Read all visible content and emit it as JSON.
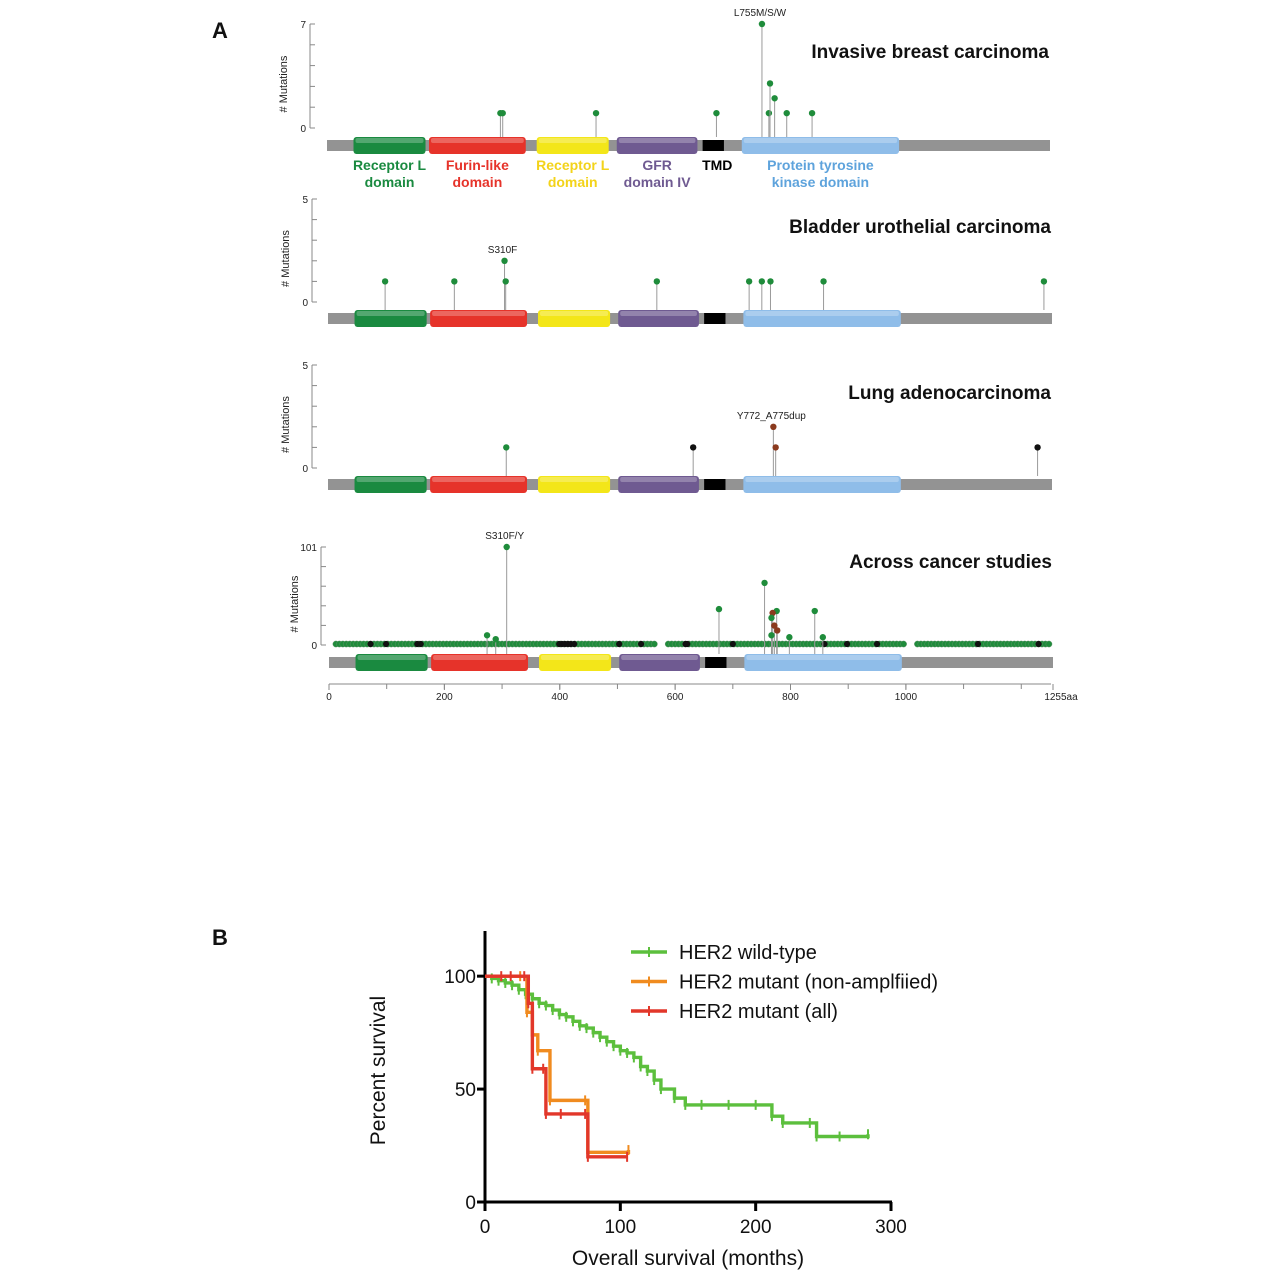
{
  "figure": {
    "panel_a_label": "A",
    "panel_b_label": "B"
  },
  "chart_data": [
    {
      "type": "lollipop",
      "id": "breast",
      "title": "Invasive breast carcinoma",
      "ylabel": "# Mutations",
      "ylim": [
        0,
        7
      ],
      "y_ticks": [
        "0",
        "7"
      ],
      "protein_length": 1255,
      "show_domain_labels": true,
      "annotation": {
        "text": "L755M/S/W",
        "x": 755
      },
      "points": [
        {
          "x": 301,
          "y": 1,
          "color": "#1f8c3b"
        },
        {
          "x": 305,
          "y": 1,
          "color": "#1f8c3b"
        },
        {
          "x": 467,
          "y": 1,
          "color": "#1f8c3b"
        },
        {
          "x": 676,
          "y": 1,
          "color": "#1f8c3b"
        },
        {
          "x": 755,
          "y": 7,
          "color": "#1f8c3b"
        },
        {
          "x": 767,
          "y": 1,
          "color": "#1f8c3b"
        },
        {
          "x": 769,
          "y": 3,
          "color": "#1f8c3b"
        },
        {
          "x": 777,
          "y": 2,
          "color": "#1f8c3b"
        },
        {
          "x": 798,
          "y": 1,
          "color": "#1f8c3b"
        },
        {
          "x": 842,
          "y": 1,
          "color": "#1f8c3b"
        }
      ]
    },
    {
      "type": "lollipop",
      "id": "bladder",
      "title": "Bladder urothelial carcinoma",
      "ylabel": "# Mutations",
      "ylim": [
        0,
        5
      ],
      "y_ticks": [
        "0",
        "5"
      ],
      "protein_length": 1255,
      "show_domain_labels": false,
      "annotation": {
        "text": "S310F",
        "x": 306
      },
      "points": [
        {
          "x": 99,
          "y": 1,
          "color": "#1f8c3b"
        },
        {
          "x": 219,
          "y": 1,
          "color": "#1f8c3b"
        },
        {
          "x": 306,
          "y": 2,
          "color": "#1f8c3b"
        },
        {
          "x": 308,
          "y": 1,
          "color": "#1f8c3b"
        },
        {
          "x": 570,
          "y": 1,
          "color": "#1f8c3b"
        },
        {
          "x": 730,
          "y": 1,
          "color": "#1f8c3b"
        },
        {
          "x": 752,
          "y": 1,
          "color": "#1f8c3b"
        },
        {
          "x": 767,
          "y": 1,
          "color": "#1f8c3b"
        },
        {
          "x": 859,
          "y": 1,
          "color": "#1f8c3b"
        },
        {
          "x": 1241,
          "y": 1,
          "color": "#1f8c3b"
        }
      ]
    },
    {
      "type": "lollipop",
      "id": "lung",
      "title": "Lung adenocarcinoma",
      "ylabel": "# Mutations",
      "ylim": [
        0,
        5
      ],
      "y_ticks": [
        "0",
        "5"
      ],
      "protein_length": 1255,
      "show_domain_labels": false,
      "annotation": {
        "text": "Y772_A775dup",
        "x": 772
      },
      "points": [
        {
          "x": 309,
          "y": 1,
          "color": "#1f8c3b"
        },
        {
          "x": 633,
          "y": 1,
          "color": "#111111"
        },
        {
          "x": 772,
          "y": 2,
          "color": "#8b3a1e"
        },
        {
          "x": 776,
          "y": 1,
          "color": "#8b3a1e"
        },
        {
          "x": 1230,
          "y": 1,
          "color": "#111111"
        }
      ]
    },
    {
      "type": "lollipop",
      "id": "across",
      "title": "Across cancer studies",
      "ylabel": "# Mutations",
      "ylim": [
        0,
        101
      ],
      "y_ticks": [
        "0",
        "101"
      ],
      "protein_length": 1255,
      "show_domain_labels": false,
      "annotation": {
        "text": "S310F/Y",
        "x": 308
      },
      "points": [
        {
          "x": 308,
          "y": 101,
          "color": "#1f8c3b"
        },
        {
          "x": 755,
          "y": 64,
          "color": "#1f8c3b"
        },
        {
          "x": 676,
          "y": 37,
          "color": "#1f8c3b"
        },
        {
          "x": 776,
          "y": 35,
          "color": "#1f8c3b"
        },
        {
          "x": 842,
          "y": 35,
          "color": "#1f8c3b"
        },
        {
          "x": 769,
          "y": 33,
          "color": "#8b3a1e"
        },
        {
          "x": 767,
          "y": 28,
          "color": "#1f8c3b"
        },
        {
          "x": 772,
          "y": 20,
          "color": "#8b3a1e"
        },
        {
          "x": 777,
          "y": 15,
          "color": "#8b3a1e"
        },
        {
          "x": 767,
          "y": 10,
          "color": "#1f8c3b"
        },
        {
          "x": 798,
          "y": 8,
          "color": "#1f8c3b"
        },
        {
          "x": 274,
          "y": 10,
          "color": "#1f8c3b"
        },
        {
          "x": 289,
          "y": 6,
          "color": "#1f8c3b"
        },
        {
          "x": 856,
          "y": 8,
          "color": "#1f8c3b"
        }
      ],
      "baseline": {
        "y": 1,
        "x_start": 12,
        "x_end": 1250,
        "step": 6,
        "color": "#1f8c3b",
        "black_x": [
          72,
          99,
          153,
          159,
          399,
          404,
          409,
          414,
          419,
          425,
          503,
          541,
          618,
          621,
          700,
          859,
          898,
          950,
          1125,
          1230
        ],
        "gaps": [
          [
            570,
            582
          ],
          [
            1002,
            1014
          ]
        ]
      },
      "x_ticks": [
        "0",
        "200",
        "400",
        "600",
        "800",
        "1000",
        "1255aa"
      ],
      "x_tick_values": [
        0,
        200,
        400,
        600,
        800,
        1000,
        1255
      ]
    },
    {
      "type": "line",
      "id": "survival",
      "xlabel": "Overall survival (months)",
      "ylabel": "Percent survival",
      "xlim": [
        0,
        300
      ],
      "ylim": [
        0,
        120
      ],
      "x_ticks": [
        "0",
        "100",
        "200",
        "300"
      ],
      "x_tick_values": [
        0,
        100,
        200,
        300
      ],
      "y_ticks": [
        "0",
        "50",
        "100"
      ],
      "y_tick_values": [
        0,
        50,
        100
      ],
      "legend_position": "top-right",
      "series": [
        {
          "name": "HER2 wild-type",
          "color": "#5cbf3d",
          "x": [
            0,
            5,
            10,
            15,
            20,
            25,
            30,
            35,
            40,
            45,
            50,
            55,
            60,
            65,
            70,
            75,
            80,
            85,
            90,
            95,
            100,
            105,
            110,
            115,
            120,
            125,
            130,
            140,
            148,
            160,
            180,
            200,
            212,
            220,
            240,
            245,
            262,
            283
          ],
          "y": [
            100,
            99,
            98,
            97,
            96,
            94,
            92,
            90,
            88,
            87,
            85,
            83,
            82,
            80,
            78,
            77,
            75,
            73,
            71,
            69,
            67,
            66,
            64,
            60,
            58,
            54,
            50,
            46,
            43,
            43,
            43,
            43,
            38,
            35,
            35,
            29,
            29,
            30
          ]
        },
        {
          "name": "HER2 mutant (non-amplfiied)",
          "color": "#f08b1f",
          "x": [
            0,
            26,
            31,
            35,
            39,
            48,
            74,
            76,
            106
          ],
          "y": [
            100,
            100,
            84,
            74,
            67,
            45,
            45,
            22,
            23
          ]
        },
        {
          "name": "HER2 mutant (all)",
          "color": "#e2372a",
          "x": [
            0,
            12,
            19,
            29,
            32,
            35,
            43,
            45,
            56,
            74,
            76,
            105
          ],
          "y": [
            100,
            100,
            100,
            100,
            88,
            59,
            59,
            39,
            39,
            39,
            20,
            20
          ]
        }
      ]
    }
  ],
  "domains": [
    {
      "name": "receptor_l_1",
      "label_line1": "Receptor L",
      "label_line2": "domain",
      "start": 46,
      "end": 171,
      "color": "#1a8a40",
      "label_color": "#1a8a40"
    },
    {
      "name": "furin",
      "label_line1": "Furin-like",
      "label_line2": "domain",
      "start": 177,
      "end": 345,
      "color": "#e6332a",
      "label_color": "#e6332a"
    },
    {
      "name": "receptor_l_2",
      "label_line1": "Receptor L",
      "label_line2": "domain",
      "start": 364,
      "end": 489,
      "color": "#f3e619",
      "label_color": "#f3d31a"
    },
    {
      "name": "gfr",
      "label_line1": "GFR",
      "label_line2": "domain IV",
      "start": 503,
      "end": 643,
      "color": "#6f5a91",
      "label_color": "#6f5a91"
    },
    {
      "name": "tmd",
      "label_line1": "TMD",
      "label_line2": "",
      "start": 652,
      "end": 689,
      "color": "#000000",
      "label_color": "#000000"
    },
    {
      "name": "kinase",
      "label_line1": "Protein tyrosine",
      "label_line2": "kinase domain",
      "start": 720,
      "end": 993,
      "color": "#8fbde9",
      "label_color": "#5ea3dc"
    }
  ]
}
